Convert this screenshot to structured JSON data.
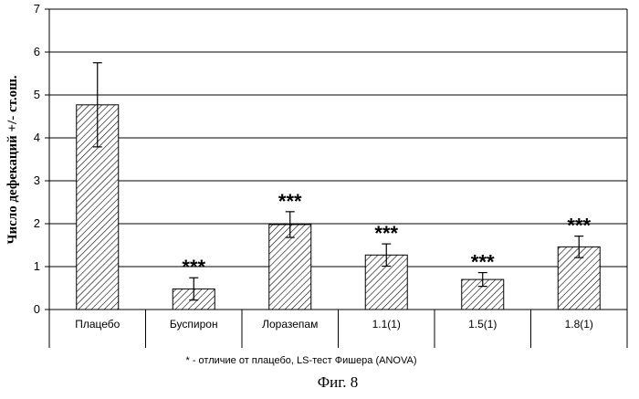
{
  "chart_data": {
    "type": "bar",
    "categories": [
      "Плацебо",
      "Буспирон",
      "Лоразепам",
      "1.1(1)",
      "1.5(1)",
      "1.8(1)"
    ],
    "series": [
      {
        "values": [
          4.77,
          0.48,
          1.98,
          1.27,
          0.7,
          1.46
        ],
        "error": [
          0.98,
          0.26,
          0.3,
          0.26,
          0.16,
          0.25
        ],
        "significance": [
          "",
          "***",
          "***",
          "***",
          "***",
          "***"
        ]
      }
    ],
    "ylabel": "Число дефекаций +/- ст.ош.",
    "xlabel": "",
    "title": "",
    "ylim": [
      0,
      7
    ],
    "yticks": [
      0,
      1,
      2,
      3,
      4,
      5,
      6,
      7
    ],
    "grid": true,
    "footnote": "* - отличие от плацебо, LS-тест Фишера (ANOVA)",
    "figure_caption": "Фиг. 8",
    "colors": {
      "bar_hatch": "#000000",
      "bar_fill": "#ffffff"
    }
  }
}
